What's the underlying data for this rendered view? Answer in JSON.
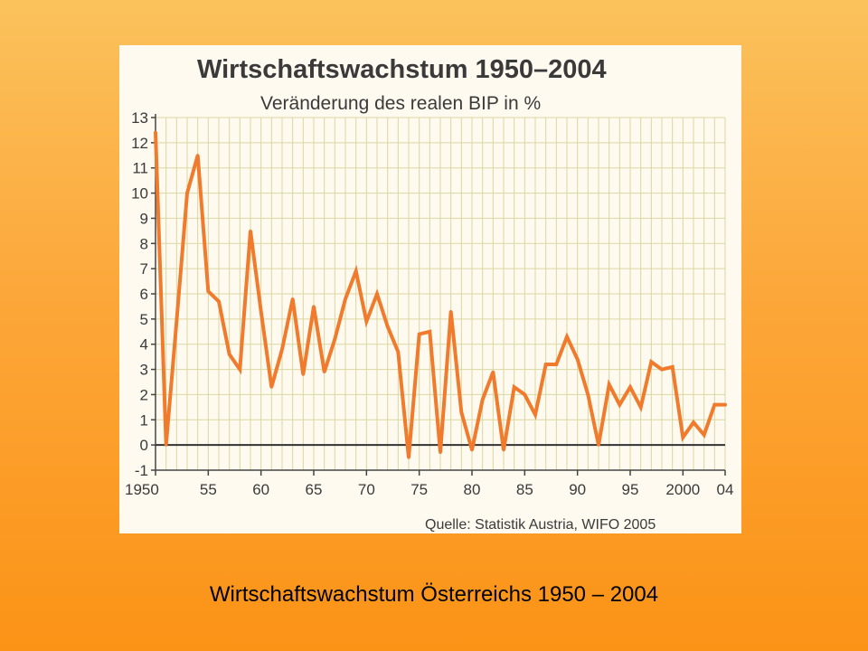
{
  "slide": {
    "caption": "Wirtschaftswachstum Österreichs 1950 – 2004",
    "background_colors": [
      "#fbc25c",
      "#fb9316"
    ]
  },
  "chart_data": {
    "type": "line",
    "title": "Wirtschaftswachstum 1950–2004",
    "subtitle": "Veränderung des realen BIP in %",
    "source": "Quelle: Statistik Austria, WIFO 2005",
    "xlabel": "",
    "ylabel": "",
    "xlim": [
      1950,
      2004
    ],
    "ylim": [
      -1,
      13
    ],
    "grid": true,
    "line_color": "#f07b2c",
    "grid_color": "#d9d7a0",
    "x_ticks": [
      {
        "value": 1950,
        "label": "1950"
      },
      {
        "value": 1955,
        "label": "55"
      },
      {
        "value": 1960,
        "label": "60"
      },
      {
        "value": 1965,
        "label": "65"
      },
      {
        "value": 1970,
        "label": "70"
      },
      {
        "value": 1975,
        "label": "75"
      },
      {
        "value": 1980,
        "label": "80"
      },
      {
        "value": 1985,
        "label": "85"
      },
      {
        "value": 1990,
        "label": "90"
      },
      {
        "value": 1995,
        "label": "95"
      },
      {
        "value": 2000,
        "label": "2000"
      },
      {
        "value": 2004,
        "label": "04"
      }
    ],
    "y_ticks": [
      -1,
      0,
      1,
      2,
      3,
      4,
      5,
      6,
      7,
      8,
      9,
      10,
      11,
      12,
      13
    ],
    "series": [
      {
        "name": "",
        "x": [
          1950,
          1951,
          1952,
          1953,
          1954,
          1955,
          1956,
          1957,
          1958,
          1959,
          1960,
          1961,
          1962,
          1963,
          1964,
          1965,
          1966,
          1967,
          1968,
          1969,
          1970,
          1971,
          1972,
          1973,
          1974,
          1975,
          1976,
          1977,
          1978,
          1979,
          1980,
          1981,
          1982,
          1983,
          1984,
          1985,
          1986,
          1987,
          1988,
          1989,
          1990,
          1991,
          1992,
          1993,
          1994,
          1995,
          1996,
          1997,
          1998,
          1999,
          2000,
          2001,
          2002,
          2003,
          2004
        ],
        "values": [
          12.4,
          0.0,
          4.9,
          10.0,
          11.5,
          6.1,
          5.7,
          3.6,
          3.0,
          8.5,
          5.3,
          2.3,
          3.8,
          5.8,
          2.8,
          5.5,
          2.9,
          4.2,
          5.8,
          6.9,
          4.9,
          6.0,
          4.7,
          3.7,
          -0.5,
          4.4,
          4.5,
          -0.3,
          5.3,
          1.3,
          -0.2,
          1.8,
          2.9,
          -0.2,
          2.3,
          2.0,
          1.2,
          3.2,
          3.2,
          4.3,
          3.4,
          2.0,
          0.0,
          2.4,
          1.6,
          2.3,
          1.5,
          3.3,
          3.0,
          3.1,
          0.3,
          0.9,
          0.4,
          1.6,
          1.6
        ]
      }
    ]
  }
}
